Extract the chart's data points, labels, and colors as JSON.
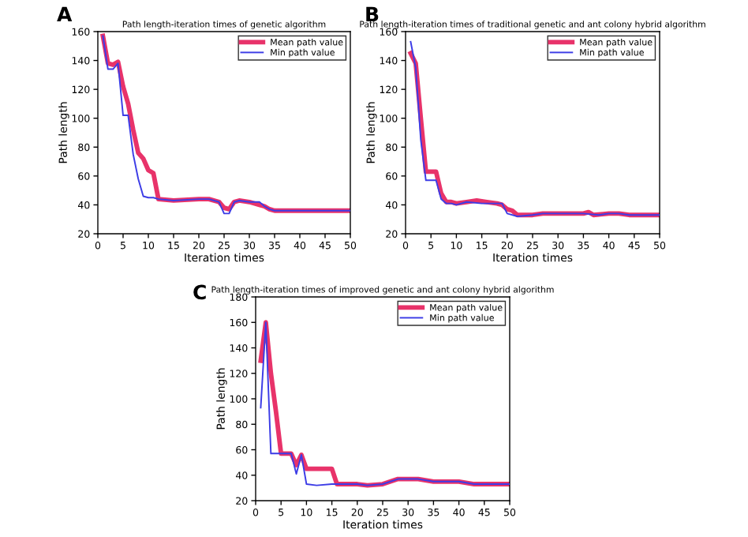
{
  "chart_data": [
    {
      "type": "line",
      "title": "Path length-iteration times of genetic algorithm",
      "xlabel": "Iteration times",
      "ylabel": "Path length",
      "annotations": [
        "A"
      ],
      "xlim": [
        0,
        50
      ],
      "ylim": [
        20,
        160
      ],
      "xticks": [
        0,
        5,
        10,
        15,
        20,
        25,
        30,
        35,
        40,
        45,
        50
      ],
      "yticks": [
        20,
        40,
        60,
        80,
        100,
        120,
        140,
        160
      ],
      "legend": "top right",
      "grid": false,
      "series": [
        {
          "name": "Mean path value",
          "color": "#e8336a",
          "x": [
            1,
            2,
            3,
            4,
            5,
            6,
            7,
            8,
            9,
            10,
            11,
            12,
            15,
            20,
            22,
            24,
            25,
            26,
            27,
            28,
            30,
            32,
            33,
            34,
            35,
            40,
            45,
            50
          ],
          "values": [
            157,
            138,
            137,
            139,
            122,
            110,
            92,
            76,
            72,
            64,
            62,
            44,
            43,
            44,
            44,
            42,
            38,
            37,
            42,
            43,
            42,
            40,
            39,
            37,
            36,
            36,
            36,
            36
          ]
        },
        {
          "name": "Min path value",
          "color": "#3c3ce6",
          "x": [
            1,
            2,
            3,
            4,
            5,
            6,
            7,
            8,
            9,
            10,
            11,
            12,
            15,
            20,
            22,
            24,
            25,
            26,
            27,
            28,
            30,
            31,
            32,
            33,
            34,
            35,
            40,
            45,
            50
          ],
          "values": [
            157,
            134,
            134,
            138,
            102,
            102,
            75,
            58,
            46,
            45,
            45,
            44,
            43,
            44,
            44,
            42,
            34,
            34,
            42,
            43,
            42,
            42,
            42,
            39,
            37,
            36,
            36,
            36,
            36
          ]
        }
      ]
    },
    {
      "type": "line",
      "title": "Path length-iteration times of traditional genetic and ant colony hybrid algorithm",
      "xlabel": "Iteration times",
      "ylabel": "Path length",
      "annotations": [
        "B"
      ],
      "xlim": [
        0,
        50
      ],
      "ylim": [
        20,
        160
      ],
      "xticks": [
        0,
        5,
        10,
        15,
        20,
        25,
        30,
        35,
        40,
        45,
        50
      ],
      "yticks": [
        20,
        40,
        60,
        80,
        100,
        120,
        140,
        160
      ],
      "legend": "top right",
      "grid": false,
      "series": [
        {
          "name": "Mean path value",
          "color": "#e8336a",
          "x": [
            1,
            2,
            3,
            4,
            5,
            6,
            7,
            8,
            9,
            10,
            12,
            14,
            16,
            18,
            19,
            20,
            21,
            22,
            25,
            27,
            30,
            35,
            36,
            37,
            40,
            42,
            44,
            50
          ],
          "values": [
            145,
            138,
            100,
            63,
            63,
            63,
            48,
            42,
            42,
            41,
            42,
            43,
            42,
            41,
            40,
            37,
            36,
            33,
            33,
            34,
            34,
            34,
            35,
            33,
            34,
            34,
            33,
            33
          ]
        },
        {
          "name": "Min path value",
          "color": "#3c3ce6",
          "x": [
            1,
            2,
            3,
            4,
            5,
            6,
            7,
            8,
            9,
            10,
            12,
            15,
            19,
            20,
            22,
            25,
            27,
            35,
            38,
            40,
            42,
            44,
            50
          ],
          "values": [
            153,
            135,
            85,
            57,
            57,
            57,
            44,
            41,
            41,
            40,
            42,
            41,
            41,
            34,
            32,
            33,
            34,
            34,
            33,
            34,
            34,
            33,
            33
          ]
        }
      ]
    },
    {
      "type": "line",
      "title": "Path length-iteration times of improved genetic and ant colony hybrid algorithm",
      "xlabel": "Iteration times",
      "ylabel": "Path length",
      "annotations": [
        "C"
      ],
      "xlim": [
        0,
        50
      ],
      "ylim": [
        20,
        180
      ],
      "xticks": [
        0,
        5,
        10,
        15,
        20,
        25,
        30,
        35,
        40,
        45,
        50
      ],
      "yticks": [
        20,
        40,
        60,
        80,
        100,
        120,
        140,
        160,
        180
      ],
      "legend": "top right",
      "grid": false,
      "series": [
        {
          "name": "Mean path value",
          "color": "#e8336a",
          "x": [
            1,
            2,
            3,
            4,
            5,
            6,
            7,
            8,
            9,
            10,
            15,
            16,
            20,
            22,
            25,
            28,
            32,
            35,
            40,
            43,
            50
          ],
          "values": [
            130,
            160,
            120,
            90,
            57,
            57,
            57,
            48,
            56,
            45,
            45,
            33,
            33,
            32,
            33,
            37,
            37,
            35,
            35,
            33,
            33
          ]
        },
        {
          "name": "Min path value",
          "color": "#3c3ce6",
          "x": [
            1,
            2,
            3,
            4,
            7,
            8,
            9,
            10,
            12,
            15,
            20,
            22,
            25,
            28,
            32,
            35,
            40,
            43,
            50
          ],
          "values": [
            93,
            160,
            57,
            57,
            57,
            41,
            56,
            33,
            32,
            33,
            33,
            32,
            33,
            37,
            37,
            35,
            35,
            33,
            33
          ]
        }
      ]
    }
  ]
}
